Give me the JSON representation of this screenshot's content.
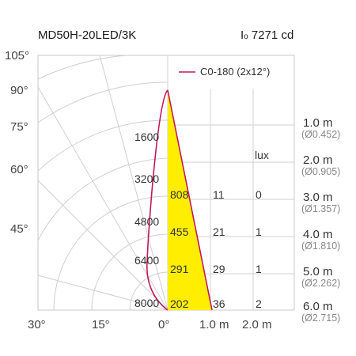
{
  "header": {
    "model": "MD50H-20LED/3K",
    "intensity_symbol": "I",
    "intensity_sub": "o",
    "intensity_value": "7271 cd"
  },
  "legend": {
    "label": "C0-180 (2x12°)",
    "color": "#c2185b"
  },
  "angles": {
    "a105": "105°",
    "a90": "90°",
    "a75": "75°",
    "a60": "60°",
    "a45": "45°",
    "b30": "30°",
    "b15": "15°",
    "b0": "0°"
  },
  "intensity_labels": [
    "1600",
    "3200",
    "4800",
    "6400",
    "8000"
  ],
  "bottom_axis": {
    "m1": "1.0 m",
    "m2": "2.0 m"
  },
  "lux_header": "lux",
  "rows": [
    {
      "dist": "1.0 m",
      "diam": "(Ø0.452)"
    },
    {
      "dist": "2.0 m",
      "diam": "(Ø0.905)"
    },
    {
      "dist": "3.0 m",
      "diam": "(Ø1.357)",
      "center": "808",
      "half": "11",
      "edge": "0"
    },
    {
      "dist": "4.0 m",
      "diam": "(Ø1.810)",
      "center": "455",
      "half": "21",
      "edge": "1"
    },
    {
      "dist": "5.0 m",
      "diam": "(Ø2.262)",
      "center": "291",
      "half": "29",
      "edge": "1"
    },
    {
      "dist": "6.0 m",
      "diam": "(Ø2.715)",
      "center": "202",
      "half": "36",
      "edge": "2"
    }
  ],
  "colors": {
    "cone_fill": "#ffee00",
    "curve": "#c2185b",
    "grid": "#cfcfcf"
  }
}
